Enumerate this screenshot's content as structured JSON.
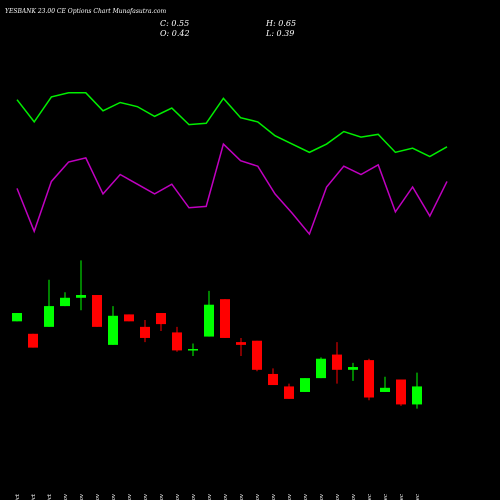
{
  "chart_data": {
    "type": "candlestick",
    "title": "YESBANK 23.00 CE Options Chart Munafasutra.com",
    "ohlc_labels": [
      "C: 0.55",
      "H: 0.65",
      "O: 0.42",
      "L: 0.39"
    ],
    "categories": [
      "29 Oct",
      "30 Oct",
      "31 Oct",
      "01 Nov",
      "04 Nov",
      "05 Nov",
      "06 Nov",
      "07 Nov",
      "08 Nov",
      "11 Nov",
      "12 Nov",
      "13 Nov",
      "14 Nov",
      "18 Nov",
      "19 Nov",
      "21 Nov",
      "22 Nov",
      "25 Nov",
      "26 Nov",
      "27 Nov",
      "28 Nov",
      "29 Nov",
      "02 Dec",
      "03 Dec",
      "04 Dec",
      "05 Dec"
    ],
    "open": [
      1.02,
      0.93,
      0.98,
      1.13,
      1.19,
      1.21,
      0.85,
      1.07,
      0.98,
      1.08,
      0.94,
      0.81,
      0.91,
      1.18,
      0.87,
      0.88,
      0.64,
      0.55,
      0.51,
      0.61,
      0.78,
      0.67,
      0.74,
      0.51,
      0.6,
      0.42
    ],
    "high": [
      1.08,
      0.93,
      1.32,
      1.23,
      1.46,
      1.21,
      1.13,
      1.07,
      1.03,
      1.08,
      0.98,
      0.86,
      1.24,
      1.18,
      0.9,
      0.88,
      0.68,
      0.57,
      0.61,
      0.76,
      0.87,
      0.72,
      0.75,
      0.62,
      0.6,
      0.65
    ],
    "low": [
      1.02,
      0.83,
      0.98,
      1.13,
      1.1,
      0.98,
      0.85,
      1.02,
      0.87,
      0.95,
      0.8,
      0.77,
      0.91,
      0.9,
      0.77,
      0.66,
      0.56,
      0.46,
      0.51,
      0.61,
      0.57,
      0.59,
      0.45,
      0.51,
      0.41,
      0.39
    ],
    "close": [
      1.08,
      0.83,
      1.13,
      1.19,
      1.21,
      0.98,
      1.06,
      1.02,
      0.9,
      1.0,
      0.81,
      0.82,
      1.14,
      0.9,
      0.85,
      0.67,
      0.56,
      0.46,
      0.61,
      0.75,
      0.67,
      0.69,
      0.47,
      0.54,
      0.42,
      0.55
    ],
    "up_color": "#00ff00",
    "down_color": "#ff0000",
    "series": [
      {
        "color": "#00ee00",
        "values": [
          2.62,
          2.46,
          2.64,
          2.67,
          2.67,
          2.54,
          2.6,
          2.57,
          2.5,
          2.56,
          2.44,
          2.45,
          2.63,
          2.49,
          2.46,
          2.36,
          2.3,
          2.24,
          2.3,
          2.39,
          2.35,
          2.37,
          2.24,
          2.27,
          2.21,
          2.28
        ]
      },
      {
        "color": "#c000c0",
        "values": [
          1.98,
          1.67,
          2.03,
          2.17,
          2.2,
          1.94,
          2.08,
          2.01,
          1.94,
          2.01,
          1.84,
          1.85,
          2.3,
          2.18,
          2.14,
          1.94,
          1.8,
          1.65,
          1.99,
          2.14,
          2.08,
          2.15,
          1.81,
          1.99,
          1.78,
          2.03
        ]
      }
    ],
    "ylim": [
      -0.27,
      3.34
    ]
  }
}
